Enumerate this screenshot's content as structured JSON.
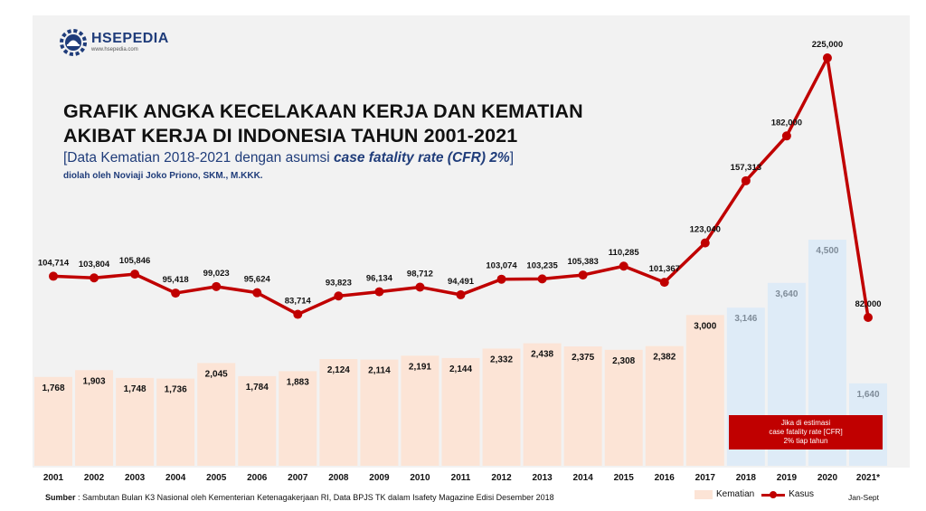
{
  "brand": {
    "name": "HSEPEDIA",
    "url": "www.hsepedia.com"
  },
  "title_line1": "GRAFIK ANGKA KECELAKAAN KERJA DAN KEMATIAN",
  "title_line2": "AKIBAT KERJA DI INDONESIA TAHUN 2001-2021",
  "subtitle_pre": "[Data Kematian 2018-2021 dengan asumsi ",
  "subtitle_em": "case fatality rate (CFR) 2%",
  "subtitle_post": "]",
  "author": "diolah oleh Noviaji Joko Priono, SKM., M.KKK.",
  "source_label": "Sumber",
  "source_text": " : Sambutan Bulan K3 Nasional oleh Kementerian Ketenagakerjaan RI, Data BPJS TK dalam Isafety Magazine Edisi Desember 2018",
  "callout": "Jika di estimasi\ncase fatality rate [CFR]\n2% tiap tahun",
  "footnote": "Jan-Sept",
  "colors": {
    "bar_actual": "#fce4d6",
    "bar_estimate": "#deebf7",
    "line": "#c00000",
    "panel": "#f2f2f2",
    "brand": "#1f3c7a"
  },
  "chart_data": {
    "type": "bar+line",
    "categories": [
      "2001",
      "2002",
      "2003",
      "2004",
      "2005",
      "2006",
      "2007",
      "2008",
      "2009",
      "2010",
      "2011",
      "2012",
      "2013",
      "2014",
      "2015",
      "2016",
      "2017",
      "2018",
      "2019",
      "2020",
      "2021*"
    ],
    "series": [
      {
        "name": "Kematian",
        "type": "bar",
        "values": [
          1768,
          1903,
          1748,
          1736,
          2045,
          1784,
          1883,
          2124,
          2114,
          2191,
          2144,
          2332,
          2438,
          2375,
          2308,
          2382,
          3000,
          3146,
          3640,
          4500,
          1640
        ],
        "labels": [
          "1,768",
          "1,903",
          "1,748",
          "1,736",
          "2,045",
          "1,784",
          "1,883",
          "2,124",
          "2,114",
          "2,191",
          "2,144",
          "2,332",
          "2,438",
          "2,375",
          "2,308",
          "2,382",
          "3,000",
          "3,146",
          "3,640",
          "4,500",
          "1,640"
        ],
        "estimated_from_index": 17
      },
      {
        "name": "Kasus",
        "type": "line",
        "values": [
          104714,
          103804,
          105846,
          95418,
          99023,
          95624,
          83714,
          93823,
          96134,
          98712,
          94491,
          103074,
          103235,
          105383,
          110285,
          101367,
          123040,
          157313,
          182000,
          225000,
          82000
        ],
        "labels": [
          "104,714",
          "103,804",
          "105,846",
          "95,418",
          "99,023",
          "95,624",
          "83,714",
          "93,823",
          "96,134",
          "98,712",
          "94,491",
          "103,074",
          "103,235",
          "105,383",
          "110,285",
          "101,367",
          "123,040",
          "157,313",
          "182,000",
          "225,000",
          "82,000"
        ]
      }
    ],
    "grid": false,
    "legend": "bottom-right"
  }
}
